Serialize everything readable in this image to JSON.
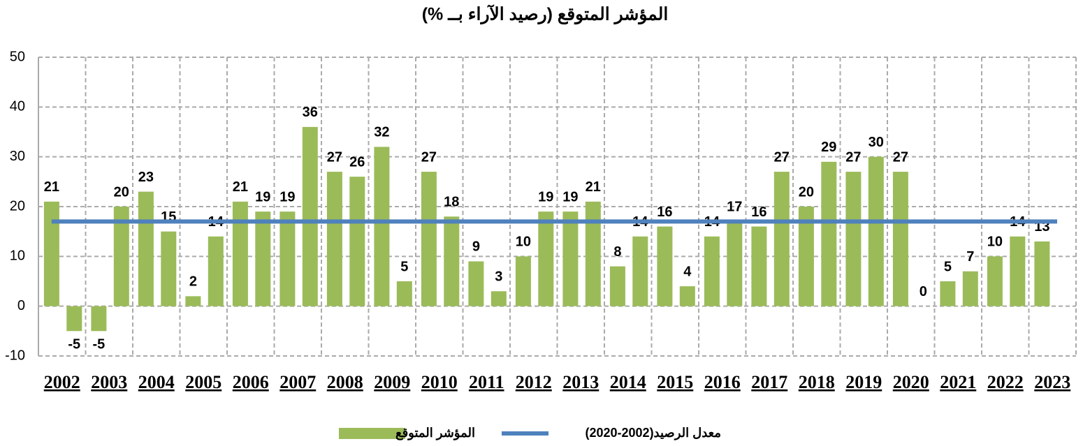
{
  "chart_data": {
    "type": "bar",
    "title": "المؤشر المتوقع (رصيد الآراء بــ %)",
    "categories": [
      "2002",
      "2003",
      "2004",
      "2005",
      "2006",
      "2007",
      "2008",
      "2009",
      "2010",
      "2011",
      "2012",
      "2013",
      "2014",
      "2015",
      "2016",
      "2017",
      "2018",
      "2019",
      "2020",
      "2021",
      "2022",
      "2023"
    ],
    "series": [
      {
        "name": "المؤشر المتوقع",
        "color": "#9bbb59",
        "values": [
          [
            21,
            -5
          ],
          [
            -5,
            20
          ],
          [
            23,
            15
          ],
          [
            2,
            14
          ],
          [
            21,
            19
          ],
          [
            19,
            36
          ],
          [
            27,
            26
          ],
          [
            32,
            5
          ],
          [
            27,
            18
          ],
          [
            9,
            3
          ],
          [
            10,
            19
          ],
          [
            19,
            21
          ],
          [
            8,
            14
          ],
          [
            16,
            4
          ],
          [
            14,
            17
          ],
          [
            16,
            27
          ],
          [
            20,
            29
          ],
          [
            27,
            30
          ],
          [
            27,
            0
          ],
          [
            5,
            7
          ],
          [
            10,
            14
          ],
          [
            13,
            null
          ]
        ]
      },
      {
        "name": "معدل الرصيد(2002-2020)",
        "color": "#4f81bd",
        "type": "line",
        "values": [
          17,
          17,
          17,
          17,
          17,
          17,
          17,
          17,
          17,
          17,
          17,
          17,
          17,
          17,
          17,
          17,
          17,
          17,
          17,
          17,
          17,
          17
        ]
      }
    ],
    "ylim": [
      -10,
      50
    ],
    "yticks": [
      -10,
      0,
      10,
      20,
      30,
      40,
      50
    ],
    "grid": true
  }
}
